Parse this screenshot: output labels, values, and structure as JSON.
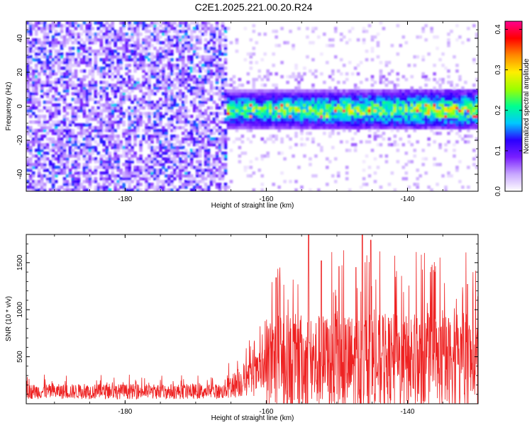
{
  "title": "C2E1.2025.221.00.20.R24",
  "chart_data": [
    {
      "type": "heatmap",
      "xlabel": "Height of straight line (km)",
      "ylabel": "Frequency (Hz)",
      "xlim": [
        -194,
        -130
      ],
      "ylim": [
        -50,
        50
      ],
      "x_ticks": [
        -180,
        -160,
        -140
      ],
      "y_ticks": [
        -40,
        -20,
        0,
        20,
        40
      ],
      "colorbar": {
        "label": "Normalized spectral amplitude",
        "range": [
          0.0,
          0.42
        ],
        "ticks": [
          "0.0",
          "0.1",
          "0.2",
          "0.3",
          "0.4"
        ],
        "colors": [
          "#ffffff",
          "#c9a8ff",
          "#7a1fff",
          "#2b00ff",
          "#00c8ff",
          "#00ff90",
          "#9cff00",
          "#ffee00",
          "#ff8800",
          "#ff0000",
          "#ff0090"
        ]
      },
      "regions": [
        {
          "x_range": [
            -194,
            -165.5
          ],
          "description_level": "broadband noise, amplitude ~0.0-0.15 across all frequencies"
        },
        {
          "x_range": [
            -165.5,
            -130
          ],
          "band_center_hz": -2,
          "band_halfwidth_hz": 12,
          "peak_amplitude": 0.42
        }
      ]
    },
    {
      "type": "line",
      "xlabel": "Height of straight line (km)",
      "ylabel": "SNR (10 * v/v)",
      "xlim": [
        -194,
        -130
      ],
      "ylim": [
        0,
        1800
      ],
      "x_ticks": [
        -180,
        -160,
        -140
      ],
      "y_ticks": [
        500,
        1000,
        1500
      ],
      "series": [
        {
          "color": "#ee2222",
          "segments": [
            {
              "x_start": -194,
              "x_end": -166,
              "baseline": 130,
              "spread": 200
            },
            {
              "x_start": -166,
              "x_end": -160,
              "baseline": 350,
              "spread": 650
            },
            {
              "x_start": -160,
              "x_end": -130,
              "baseline": 420,
              "spread": 1350
            }
          ],
          "peaks": [
            [
              -154.0,
              1800
            ],
            [
              -152.2,
              1520
            ],
            [
              -146.4,
              1800
            ],
            [
              -145.2,
              1740
            ],
            [
              -149.7,
              1460
            ],
            [
              -158.6,
              1340
            ],
            [
              -147.3,
              1450
            ],
            [
              -131.5,
              1270
            ]
          ]
        }
      ]
    }
  ]
}
